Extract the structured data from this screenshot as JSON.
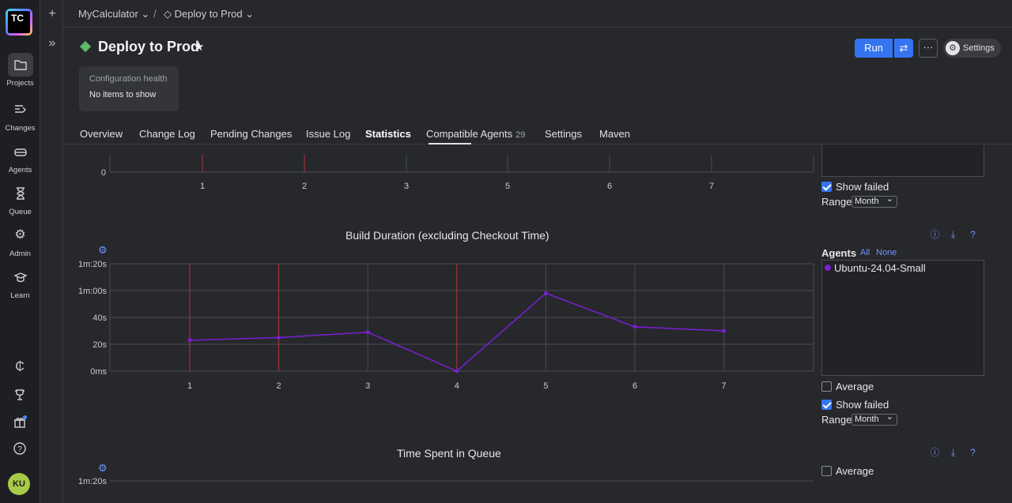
{
  "app": {
    "logo_text": "TC"
  },
  "nav": [
    {
      "label": "Projects",
      "icon": "folder-icon"
    },
    {
      "label": "Changes",
      "icon": "changes-icon"
    },
    {
      "label": "Agents",
      "icon": "agents-icon"
    },
    {
      "label": "Queue",
      "icon": "hourglass-icon"
    },
    {
      "label": "Admin",
      "icon": "gear-icon"
    },
    {
      "label": "Learn",
      "icon": "graduation-cap-icon"
    }
  ],
  "user": {
    "initials": "KU"
  },
  "breadcrumb": {
    "project": "MyCalculator",
    "sep": "/",
    "build": "Deploy to Prod"
  },
  "header": {
    "title": "Deploy to Prod"
  },
  "actions": {
    "run": "Run",
    "more": "···",
    "settings": "Settings"
  },
  "health": {
    "title": "Configuration health",
    "body": "No items to show"
  },
  "tabs": [
    {
      "label": "Overview"
    },
    {
      "label": "Change Log"
    },
    {
      "label": "Pending Changes"
    },
    {
      "label": "Issue Log"
    },
    {
      "label": "Statistics",
      "active": true
    },
    {
      "label": "Compatible Agents",
      "count": "29"
    },
    {
      "label": "Settings"
    },
    {
      "label": "Maven"
    }
  ],
  "panel_top": {
    "show_failed": "Show failed",
    "range_label": "Range",
    "range_value": "Month"
  },
  "panel_duration": {
    "agents_label": "Agents",
    "all": "All",
    "none": "None",
    "agent": "Ubuntu-24.04-Small",
    "average": "Average",
    "show_failed": "Show failed",
    "range_label": "Range",
    "range_value": "Month"
  },
  "panel_queue": {
    "average": "Average"
  },
  "colors": {
    "accent": "#3574f0",
    "series": "#7a1fd4",
    "failed": "#b2343a"
  },
  "chart_data": [
    {
      "type": "line",
      "title": "",
      "x": [
        1,
        2,
        3,
        5,
        6,
        7
      ],
      "y_ticks": [
        "0"
      ],
      "failed_builds": [
        1,
        2
      ],
      "note": "partially visible chart, scrolled"
    },
    {
      "type": "line",
      "title": "Build Duration (excluding Checkout Time)",
      "x": [
        1,
        2,
        3,
        4,
        5,
        6,
        7
      ],
      "series": [
        {
          "name": "Ubuntu-24.04-Small",
          "values_seconds": [
            23,
            25,
            29,
            0,
            58,
            33,
            30
          ]
        }
      ],
      "y_ticks": [
        "0ms",
        "20s",
        "40s",
        "1m:00s",
        "1m:20s"
      ],
      "ylim_seconds": [
        0,
        80
      ],
      "failed_builds": [
        1,
        2,
        4
      ],
      "grid": true
    },
    {
      "type": "line",
      "title": "Time Spent in Queue",
      "y_ticks": [
        "1m:20s"
      ]
    }
  ]
}
